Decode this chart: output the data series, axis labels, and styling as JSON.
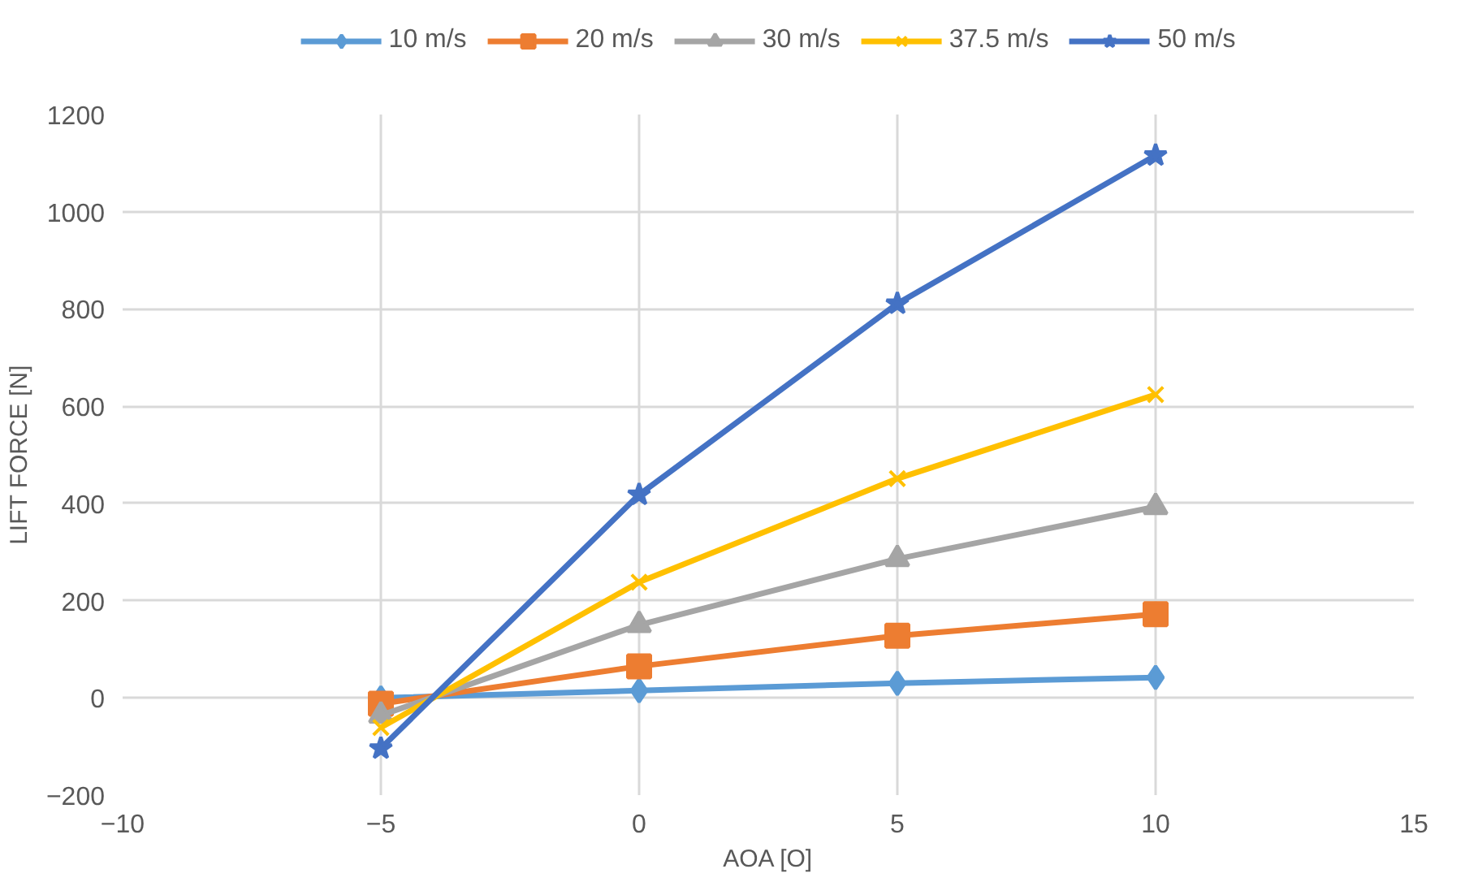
{
  "chart_data": {
    "type": "line",
    "xlabel": "AOA [O]",
    "ylabel": "LIFT FORCE [N]",
    "x": [
      -5,
      0,
      5,
      10
    ],
    "xlim": [
      -10,
      15
    ],
    "xticks": [
      -10,
      -5,
      0,
      5,
      10,
      15
    ],
    "ylim": [
      -200,
      1200
    ],
    "yticks": [
      -200,
      0,
      200,
      400,
      600,
      800,
      1000,
      1200
    ],
    "grid": true,
    "legend": "top",
    "line_style": "solid",
    "series": [
      {
        "name": "10 m/s",
        "color": "#5b9bd5",
        "marker": "diamond",
        "values": [
          0,
          15,
          30,
          42
        ]
      },
      {
        "name": "20 m/s",
        "color": "#ed7d31",
        "marker": "square",
        "values": [
          -12,
          65,
          128,
          172
        ]
      },
      {
        "name": "30 m/s",
        "color": "#a5a5a5",
        "marker": "triangle",
        "values": [
          -36,
          150,
          286,
          393
        ]
      },
      {
        "name": "37.5 m/s",
        "color": "#ffc000",
        "marker": "cross",
        "values": [
          -61,
          238,
          451,
          624
        ]
      },
      {
        "name": "50 m/s",
        "color": "#4472c4",
        "marker": "star",
        "values": [
          -104,
          418,
          811,
          1116
        ]
      }
    ]
  }
}
